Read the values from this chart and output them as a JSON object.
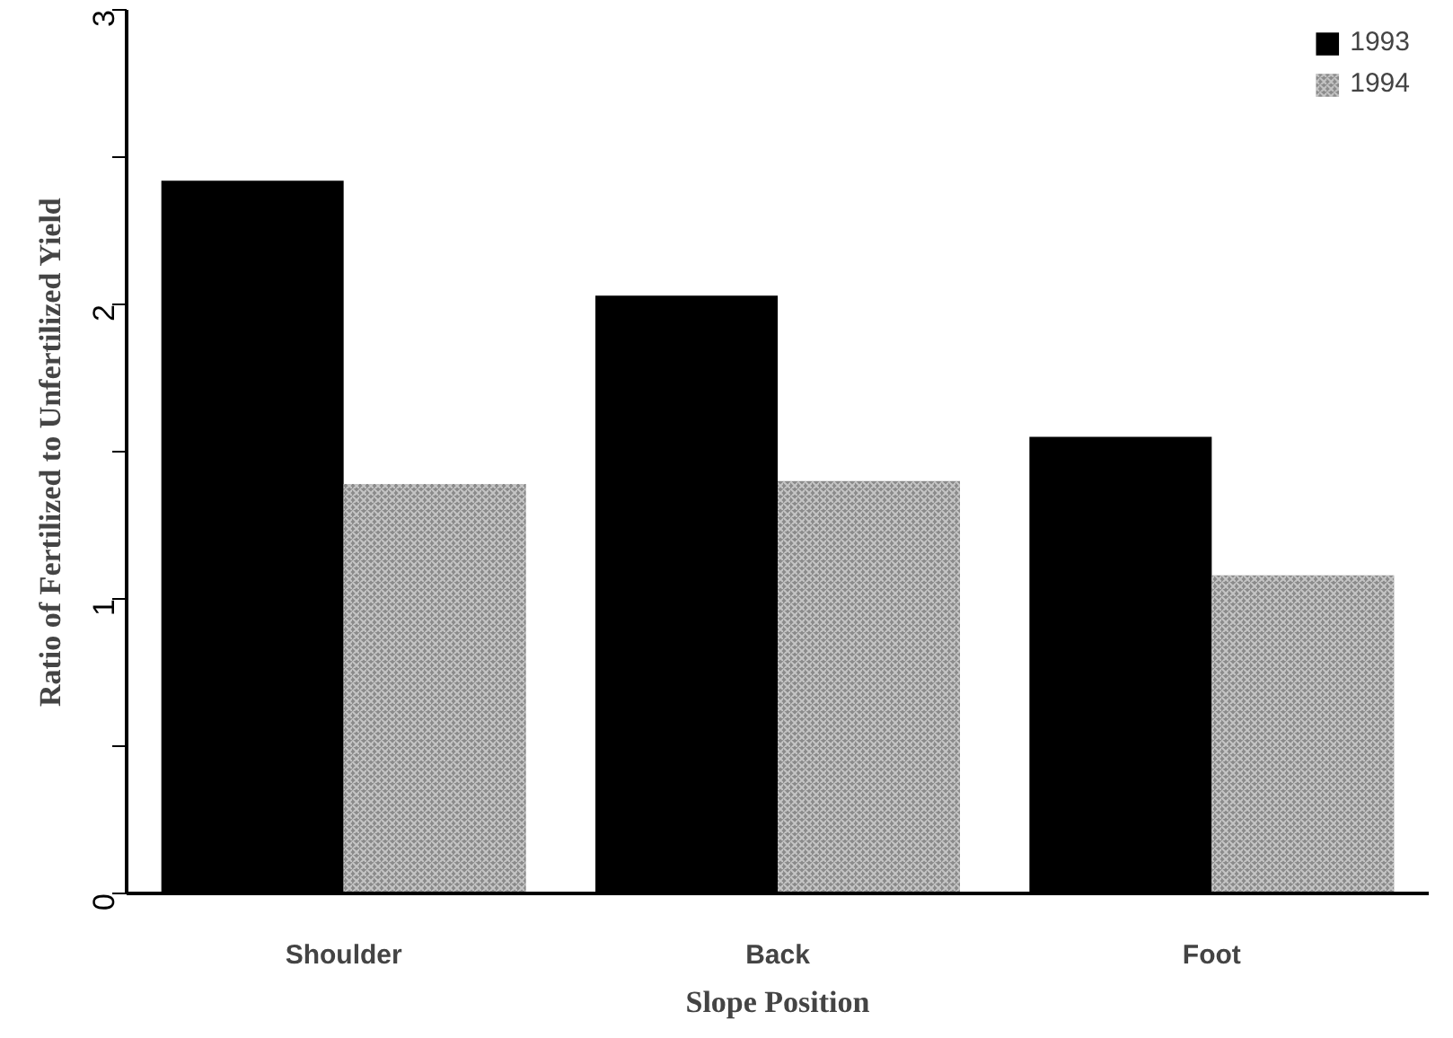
{
  "chart_data": {
    "type": "bar",
    "xlabel": "Slope Position",
    "ylabel": "Ratio of Fertilized to Unfertilized Yield",
    "categories": [
      "Shoulder",
      "Back",
      "Foot"
    ],
    "series": [
      {
        "name": "1993",
        "color": "#000000",
        "values": [
          2.42,
          2.03,
          1.55
        ]
      },
      {
        "name": "1994",
        "color": "#8a8a8a",
        "values": [
          1.39,
          1.4,
          1.08
        ]
      }
    ],
    "ylim": [
      0,
      3
    ],
    "yticks": [
      0,
      {
        "value": 0.5,
        "label": null
      },
      1,
      {
        "value": 1.5,
        "label": null
      },
      2,
      {
        "value": 2.5,
        "label": null
      },
      3
    ],
    "grid": false,
    "legend": "top right"
  }
}
